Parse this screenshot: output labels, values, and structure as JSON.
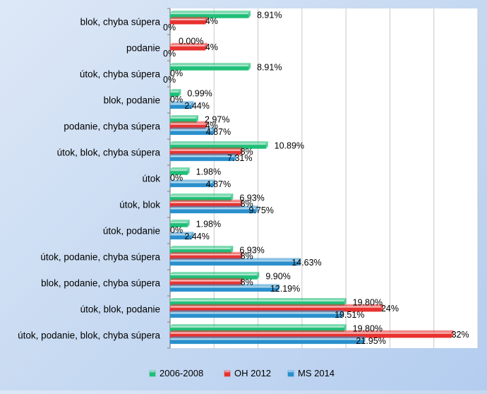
{
  "chart_data": {
    "type": "bar",
    "orientation": "horizontal",
    "categories": [
      "blok, chyba súpera",
      "podanie",
      "útok, chyba súpera",
      "blok, podanie",
      "podanie, chyba súpera",
      "útok, blok, chyba súpera",
      "útok",
      "útok, blok",
      "útok, podanie",
      "útok, podanie, chyba súpera",
      "blok, podanie, chyba súpera",
      "útok, blok, podanie",
      "útok, podanie, blok, chyba súpera"
    ],
    "series": [
      {
        "name": "2006-2008",
        "color": "#1fbf78",
        "values": [
          8.91,
          0.0,
          8.91,
          0.99,
          2.97,
          10.89,
          1.98,
          6.93,
          1.98,
          6.93,
          9.9,
          19.8,
          19.8
        ],
        "labels": [
          "8.91%",
          "0.00%",
          "8.91%",
          "0.99%",
          "2.97%",
          "10.89%",
          "1.98%",
          "6.93%",
          "1.98%",
          "6.93%",
          "9.90%",
          "19.80%",
          "19.80%"
        ]
      },
      {
        "name": "OH 2012",
        "color": "#e8322f",
        "values": [
          4,
          4,
          0,
          0,
          4,
          8,
          0,
          8,
          0,
          8,
          8,
          24,
          32
        ],
        "labels": [
          "4%",
          "4%",
          "0%",
          "0%",
          "4%",
          "8%",
          "0%",
          "8%",
          "0%",
          "8%",
          "8%",
          "24%",
          "32%"
        ]
      },
      {
        "name": "MS 2014",
        "color": "#2a8fcc",
        "values": [
          0,
          0,
          0,
          2.44,
          4.87,
          7.31,
          4.87,
          9.75,
          2.44,
          14.63,
          12.19,
          19.51,
          21.95
        ],
        "labels": [
          "0%",
          "0%",
          "0%",
          "2.44%",
          "4.87%",
          "7.31%",
          "4.87%",
          "9.75%",
          "2.44%",
          "14.63%",
          "12.19%",
          "19.51%",
          "21.95%"
        ]
      }
    ],
    "xlim": [
      0,
      35
    ],
    "grid": true,
    "legend": "bottom"
  }
}
